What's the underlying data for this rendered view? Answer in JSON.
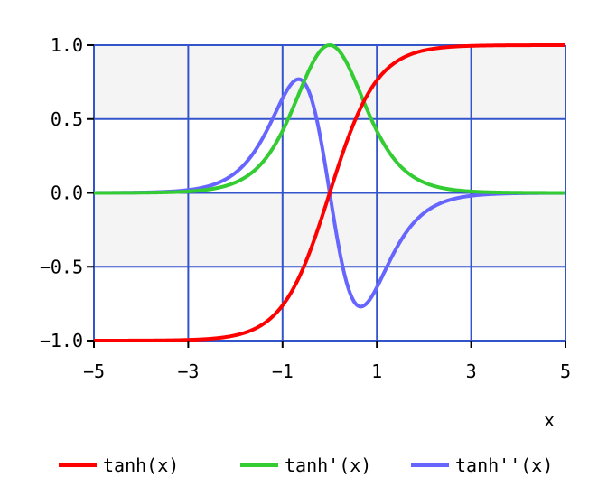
{
  "chart_data": {
    "type": "line",
    "xlabel": "x",
    "ylabel": "",
    "xlim": [
      -5,
      5
    ],
    "ylim": [
      -1.0,
      1.0
    ],
    "x_ticks": [
      -5,
      -3,
      -1,
      1,
      3,
      5
    ],
    "x_tick_labels": [
      "−5",
      "−3",
      "−1",
      "1",
      "3",
      "5"
    ],
    "y_ticks": [
      1.0,
      0.5,
      0.0,
      -0.5,
      -1.0
    ],
    "y_tick_labels": [
      "1.0",
      "0.5",
      "0.0",
      "−0.5",
      "−1.0"
    ],
    "grid": true,
    "legend_position": "bottom",
    "colors": {
      "background_band": "#f4f4f4",
      "grid": "#3355cc",
      "axis": "#000000"
    },
    "x": [
      -5,
      -4.5,
      -4,
      -3.5,
      -3,
      -2.5,
      -2,
      -1.75,
      -1.5,
      -1.25,
      -1,
      -0.75,
      -0.5,
      -0.25,
      0,
      0.25,
      0.5,
      0.75,
      1,
      1.25,
      1.5,
      1.75,
      2,
      2.5,
      3,
      3.5,
      4,
      4.5,
      5
    ],
    "series": [
      {
        "name": "tanh(x)",
        "color": "#ff0000",
        "values": [
          -0.9999,
          -0.9998,
          -0.9993,
          -0.9982,
          -0.9951,
          -0.9866,
          -0.964,
          -0.9414,
          -0.9051,
          -0.8483,
          -0.7616,
          -0.6351,
          -0.4621,
          -0.2449,
          0.0,
          0.2449,
          0.4621,
          0.6351,
          0.7616,
          0.8483,
          0.9051,
          0.9414,
          0.964,
          0.9866,
          0.9951,
          0.9982,
          0.9993,
          0.9998,
          0.9999
        ]
      },
      {
        "name": "tanh'(x)",
        "color": "#33cc33",
        "values": [
          0.0002,
          0.0005,
          0.0013,
          0.0036,
          0.0099,
          0.0266,
          0.0707,
          0.1138,
          0.1807,
          0.2804,
          0.42,
          0.5966,
          0.7864,
          0.94,
          1.0,
          0.94,
          0.7864,
          0.5966,
          0.42,
          0.2804,
          0.1807,
          0.1138,
          0.0707,
          0.0266,
          0.0099,
          0.0036,
          0.0013,
          0.0005,
          0.0002
        ]
      },
      {
        "name": "tanh''(x)",
        "color": "#6666ff",
        "values": [
          0.0004,
          0.0009,
          0.0027,
          0.0072,
          0.0197,
          0.0525,
          0.1363,
          0.2143,
          0.3271,
          0.4757,
          0.6397,
          0.7578,
          0.7268,
          0.4604,
          0.0,
          -0.4604,
          -0.7268,
          -0.7578,
          -0.6397,
          -0.4757,
          -0.3271,
          -0.2143,
          -0.1363,
          -0.0525,
          -0.0197,
          -0.0072,
          -0.0027,
          -0.0009,
          -0.0004
        ]
      }
    ]
  }
}
